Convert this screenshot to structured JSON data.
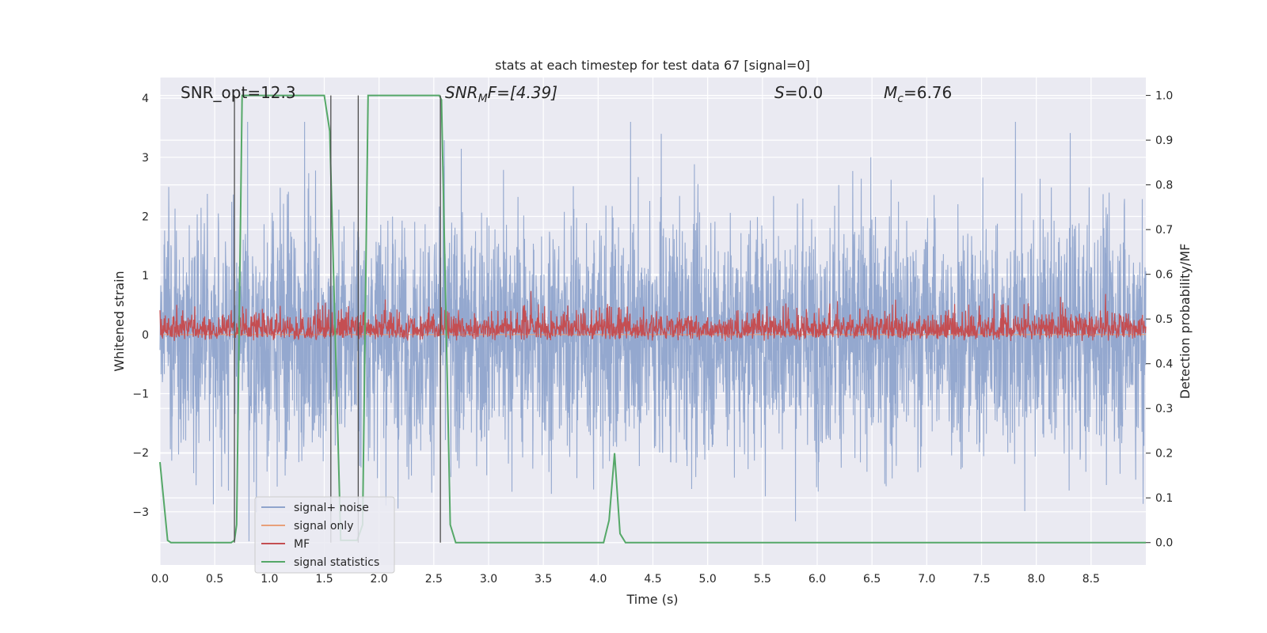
{
  "chart_data": {
    "type": "line",
    "title": "stats at each timestep for test data 67 [signal=0]",
    "xlabel": "Time (s)",
    "ylabel": "Whitened strain",
    "ylabel_right": "Detection probability/MF",
    "xlim": [
      0.0,
      9.0
    ],
    "ylim": [
      -3.9,
      4.35
    ],
    "ylim_right": [
      -0.05,
      1.04
    ],
    "grid": true,
    "legend_position": "lower-left",
    "x_ticks": [
      "0.0",
      "0.5",
      "1.0",
      "1.5",
      "2.0",
      "2.5",
      "3.0",
      "3.5",
      "4.0",
      "4.5",
      "5.0",
      "5.5",
      "6.0",
      "6.5",
      "7.0",
      "7.5",
      "8.0",
      "8.5"
    ],
    "y_ticks": [
      "4",
      "3",
      "2",
      "1",
      "0",
      "−1",
      "−2",
      "−3"
    ],
    "y_ticks_right": [
      "1.0",
      "0.9",
      "0.8",
      "0.7",
      "0.6",
      "0.5",
      "0.4",
      "0.3",
      "0.2",
      "0.1",
      "0.0"
    ],
    "annotations": {
      "snr_opt": "SNR_opt=12.3",
      "snr_mf_main": "SNR",
      "snr_mf_sub": "M",
      "snr_mf_rest": "F=[4.39]",
      "s_main": "S",
      "s_rest": "=0.0",
      "mc_main": "M",
      "mc_sub": "c",
      "mc_rest": "=6.76"
    },
    "series": [
      {
        "name": "signal+ noise",
        "axis": "left",
        "color": "#8fa4cc",
        "description_of_shape": "noise",
        "envelope_range": [
          -3.5,
          3.6
        ]
      },
      {
        "name": "signal only",
        "axis": "left",
        "color": "#e8a07a",
        "values_constant": 0.0
      },
      {
        "name": "MF",
        "axis": "right",
        "color": "#c44e52",
        "baseline": 0.5,
        "range": [
          0.45,
          0.6
        ]
      },
      {
        "name": "signal statistics",
        "axis": "right",
        "color": "#55a868",
        "x": [
          0.0,
          0.07,
          0.1,
          0.65,
          0.68,
          0.7,
          0.75,
          1.5,
          1.55,
          1.65,
          1.8,
          1.85,
          1.9,
          2.55,
          2.57,
          2.65,
          2.7,
          4.05,
          4.1,
          4.15,
          4.2,
          4.25,
          9.0
        ],
        "y": [
          0.18,
          0.005,
          0.0,
          0.0,
          0.005,
          0.04,
          1.0,
          1.0,
          0.92,
          0.005,
          0.005,
          0.04,
          1.0,
          1.0,
          0.99,
          0.04,
          0.0,
          0.0,
          0.05,
          0.2,
          0.02,
          0.0,
          0.0
        ]
      }
    ],
    "vertical_markers_x": [
      0.68,
      1.56,
      1.81,
      2.56
    ]
  },
  "legend": {
    "items": [
      {
        "label": "signal+ noise",
        "color": "#8fa4cc"
      },
      {
        "label": "signal only",
        "color": "#e8a07a"
      },
      {
        "label": "MF",
        "color": "#c44e52"
      },
      {
        "label": "signal statistics",
        "color": "#55a868"
      }
    ]
  },
  "colors": {
    "plot_background": "#eaeaf2",
    "grid": "#ffffff",
    "marker": "#4d4d4d"
  }
}
